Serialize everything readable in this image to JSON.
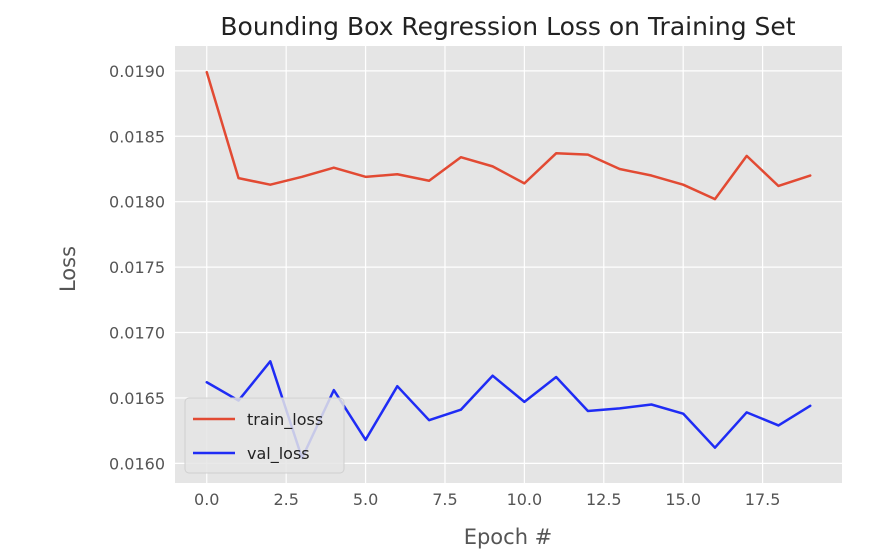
{
  "chart_data": {
    "type": "line",
    "title": "Bounding Box Regression Loss on Training Set",
    "xlabel": "Epoch #",
    "ylabel": "Loss",
    "xlim": [
      -1.0,
      20.0
    ],
    "ylim": [
      0.01585,
      0.01919
    ],
    "xticks": [
      0,
      2.5,
      5,
      7.5,
      10,
      12.5,
      15,
      17.5
    ],
    "xtick_labels": [
      "0.0",
      "2.5",
      "5.0",
      "7.5",
      "10.0",
      "12.5",
      "15.0",
      "17.5"
    ],
    "yticks": [
      0.016,
      0.0165,
      0.017,
      0.0175,
      0.018,
      0.0185,
      0.019
    ],
    "ytick_labels": [
      "0.0160",
      "0.0165",
      "0.0170",
      "0.0175",
      "0.0180",
      "0.0185",
      "0.0190"
    ],
    "grid": true,
    "legend_position": "lower-left",
    "x": [
      0,
      1,
      2,
      3,
      4,
      5,
      6,
      7,
      8,
      9,
      10,
      11,
      12,
      13,
      14,
      15,
      16,
      17,
      18,
      19
    ],
    "series": [
      {
        "name": "train_loss",
        "color": "#E24A33",
        "values": [
          0.01899,
          0.01818,
          0.01813,
          0.01819,
          0.01826,
          0.01819,
          0.01821,
          0.01816,
          0.01834,
          0.01827,
          0.01814,
          0.01837,
          0.01836,
          0.01825,
          0.0182,
          0.01813,
          0.01802,
          0.01835,
          0.01812,
          0.0182
        ]
      },
      {
        "name": "val_loss",
        "color": "#1F2CF5",
        "values": [
          0.01662,
          0.01648,
          0.01678,
          0.01604,
          0.01656,
          0.01618,
          0.01659,
          0.01633,
          0.01641,
          0.01667,
          0.01647,
          0.01666,
          0.0164,
          0.01642,
          0.01645,
          0.01638,
          0.01612,
          0.01639,
          0.01629,
          0.01644
        ]
      }
    ]
  },
  "colors": {
    "plot_background": "#E5E5E5",
    "grid": "#FFFFFF",
    "legend_background": "#E5E5E5",
    "legend_border": "#CFCFCF"
  }
}
